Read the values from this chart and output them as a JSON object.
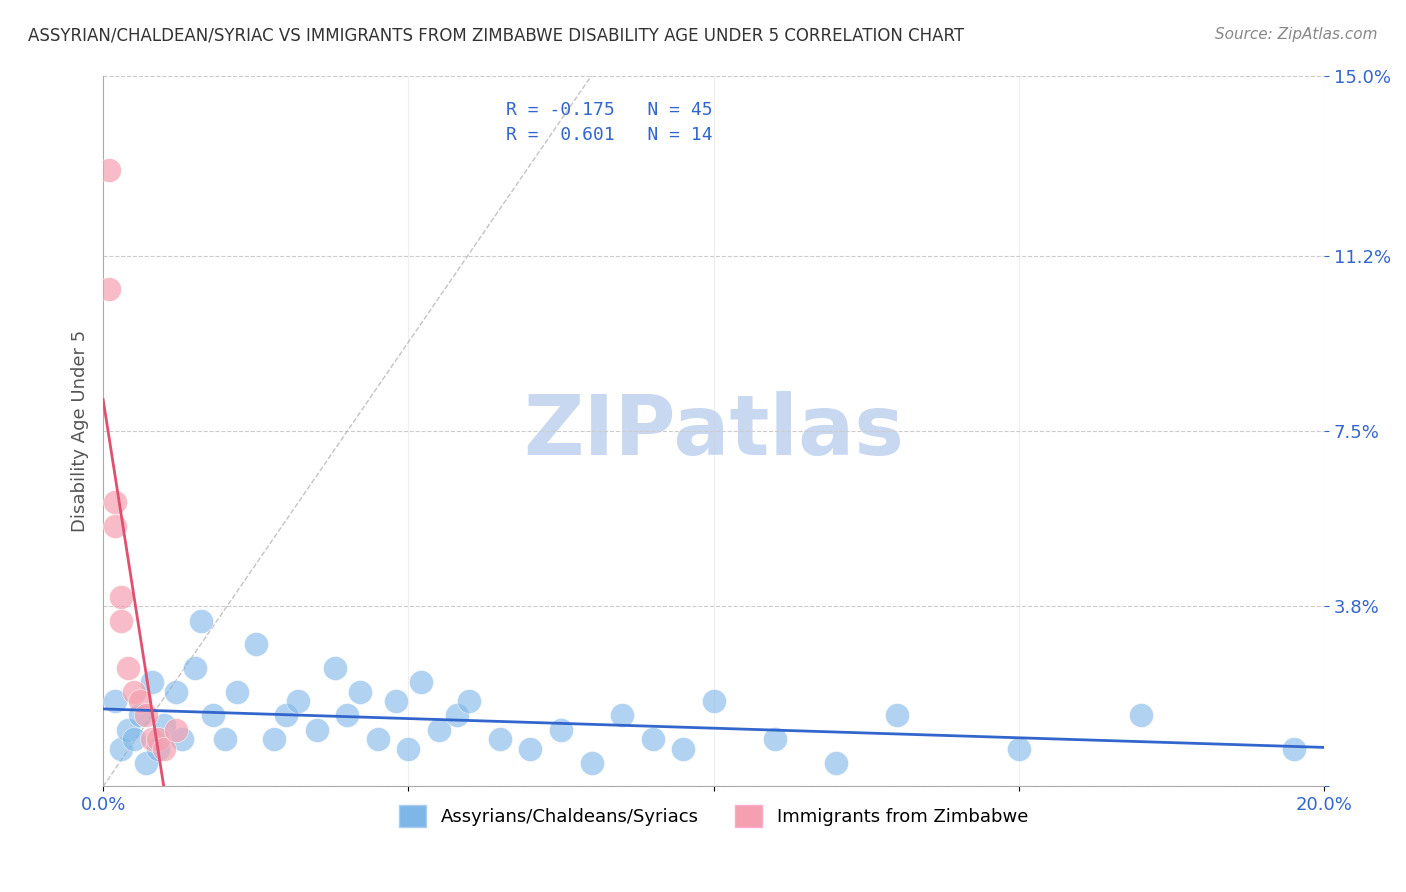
{
  "title": "ASSYRIAN/CHALDEAN/SYRIAC VS IMMIGRANTS FROM ZIMBABWE DISABILITY AGE UNDER 5 CORRELATION CHART",
  "source": "Source: ZipAtlas.com",
  "xlabel": "",
  "ylabel": "Disability Age Under 5",
  "xlim": [
    0.0,
    0.2
  ],
  "ylim": [
    0.0,
    0.15
  ],
  "yticks": [
    0.0,
    0.038,
    0.075,
    0.112,
    0.15
  ],
  "ytick_labels": [
    "",
    "3.8%",
    "7.5%",
    "11.2%",
    "15.0%"
  ],
  "xticks": [
    0.0,
    0.05,
    0.1,
    0.15,
    0.2
  ],
  "xtick_labels": [
    "0.0%",
    "",
    "",
    "",
    "20.0%"
  ],
  "legend_labels": [
    "Assyrians/Chaldeans/Syriacs",
    "Immigrants from Zimbabwe"
  ],
  "R_blue": -0.175,
  "N_blue": 45,
  "R_pink": 0.601,
  "N_pink": 14,
  "blue_color": "#7EB6E8",
  "pink_color": "#F4A0B0",
  "blue_line_color": "#3366CC",
  "pink_line_color": "#E05070",
  "watermark": "ZIPatlas",
  "watermark_color": "#C8D8F0",
  "background_color": "#FFFFFF",
  "blue_points_x": [
    0.002,
    0.003,
    0.004,
    0.005,
    0.006,
    0.007,
    0.008,
    0.009,
    0.01,
    0.012,
    0.013,
    0.015,
    0.016,
    0.018,
    0.02,
    0.022,
    0.025,
    0.028,
    0.03,
    0.032,
    0.035,
    0.038,
    0.04,
    0.042,
    0.045,
    0.048,
    0.05,
    0.052,
    0.055,
    0.058,
    0.06,
    0.065,
    0.07,
    0.075,
    0.08,
    0.085,
    0.09,
    0.095,
    0.1,
    0.11,
    0.12,
    0.13,
    0.15,
    0.17,
    0.195
  ],
  "blue_points_y": [
    0.018,
    0.008,
    0.012,
    0.01,
    0.015,
    0.005,
    0.022,
    0.008,
    0.013,
    0.02,
    0.01,
    0.025,
    0.035,
    0.015,
    0.01,
    0.02,
    0.03,
    0.01,
    0.015,
    0.018,
    0.012,
    0.025,
    0.015,
    0.02,
    0.01,
    0.018,
    0.008,
    0.022,
    0.012,
    0.015,
    0.018,
    0.01,
    0.008,
    0.012,
    0.005,
    0.015,
    0.01,
    0.008,
    0.018,
    0.01,
    0.005,
    0.015,
    0.008,
    0.015,
    0.008
  ],
  "pink_points_x": [
    0.001,
    0.001,
    0.002,
    0.002,
    0.003,
    0.003,
    0.004,
    0.005,
    0.006,
    0.007,
    0.008,
    0.009,
    0.01,
    0.012
  ],
  "pink_points_y": [
    0.13,
    0.105,
    0.06,
    0.055,
    0.04,
    0.035,
    0.025,
    0.02,
    0.018,
    0.015,
    0.01,
    0.01,
    0.008,
    0.012
  ]
}
